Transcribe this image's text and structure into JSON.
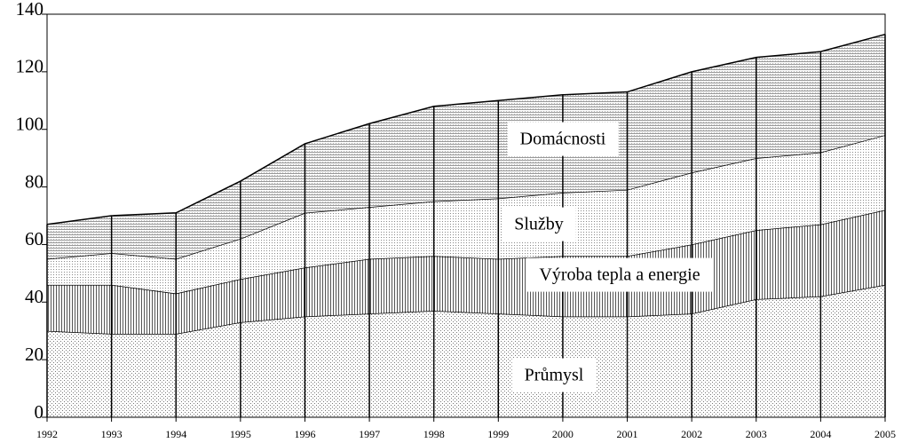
{
  "chart_data": {
    "type": "stacked_area",
    "x": [
      1992,
      1993,
      1994,
      1995,
      1996,
      1997,
      1998,
      1999,
      2000,
      2001,
      2002,
      2003,
      2004,
      2005
    ],
    "xlim": [
      1992,
      2005
    ],
    "xticks": [
      1992,
      1993,
      1994,
      1995,
      1996,
      1997,
      1998,
      1999,
      2000,
      2001,
      2002,
      2003,
      2004,
      2005
    ],
    "ylim": [
      0,
      140
    ],
    "yticks": [
      0,
      20,
      40,
      60,
      80,
      100,
      120,
      140
    ],
    "series": [
      {
        "name": "Průmysl",
        "color": "#777777",
        "values": [
          30,
          29,
          29,
          33,
          35,
          36,
          37,
          36,
          35,
          35,
          36,
          41,
          42,
          46
        ]
      },
      {
        "name": "Výroba tepla a energie",
        "color": "#555555",
        "values": [
          16,
          17,
          14,
          15,
          17,
          19,
          19,
          19,
          21,
          21,
          24,
          24,
          25,
          26
        ]
      },
      {
        "name": "Služby",
        "color": "#888888",
        "values": [
          9,
          11,
          12,
          14,
          19,
          18,
          19,
          21,
          22,
          23,
          25,
          25,
          25,
          26
        ]
      },
      {
        "name": "Domácnosti",
        "color": "#666666",
        "values": [
          12,
          13,
          16,
          20,
          24,
          29,
          33,
          34,
          34,
          34,
          35,
          35,
          35,
          35
        ]
      }
    ]
  }
}
